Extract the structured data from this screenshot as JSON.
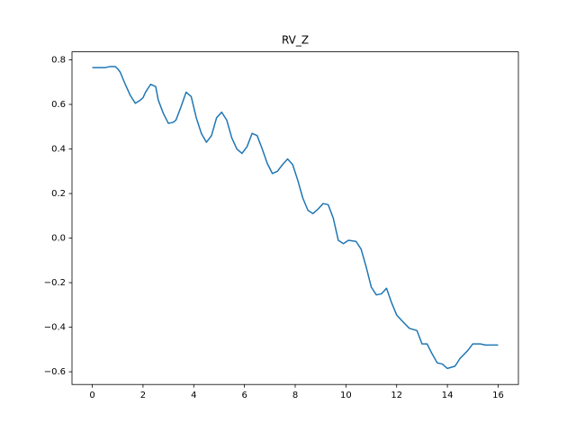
{
  "chart_data": {
    "type": "line",
    "title": "RV_Z",
    "x": [
      0,
      0.5,
      0.7,
      0.9,
      1.0,
      1.1,
      1.3,
      1.5,
      1.7,
      1.9,
      2.0,
      2.1,
      2.3,
      2.5,
      2.6,
      2.8,
      3.0,
      3.2,
      3.3,
      3.5,
      3.7,
      3.9,
      4.1,
      4.3,
      4.5,
      4.7,
      4.9,
      5.1,
      5.3,
      5.5,
      5.7,
      5.9,
      6.1,
      6.3,
      6.5,
      6.7,
      6.9,
      7.1,
      7.3,
      7.5,
      7.7,
      7.9,
      8.1,
      8.3,
      8.5,
      8.7,
      8.9,
      9.1,
      9.3,
      9.5,
      9.7,
      9.9,
      10.1,
      10.4,
      10.6,
      10.8,
      11.0,
      11.2,
      11.4,
      11.6,
      11.8,
      12.0,
      12.2,
      12.5,
      12.8,
      13.0,
      13.2,
      13.4,
      13.6,
      13.8,
      14.0,
      14.3,
      14.5,
      14.8,
      15.0,
      15.3,
      15.5,
      16.0
    ],
    "series": [
      {
        "name": "RV_Z",
        "color": "#1f77b4",
        "values": [
          0.765,
          0.765,
          0.77,
          0.77,
          0.76,
          0.745,
          0.69,
          0.64,
          0.605,
          0.62,
          0.63,
          0.655,
          0.69,
          0.68,
          0.62,
          0.56,
          0.515,
          0.52,
          0.53,
          0.59,
          0.655,
          0.635,
          0.54,
          0.47,
          0.43,
          0.46,
          0.54,
          0.565,
          0.53,
          0.45,
          0.4,
          0.38,
          0.41,
          0.47,
          0.46,
          0.4,
          0.335,
          0.29,
          0.3,
          0.33,
          0.355,
          0.33,
          0.26,
          0.18,
          0.125,
          0.11,
          0.13,
          0.155,
          0.15,
          0.09,
          -0.01,
          -0.025,
          -0.01,
          -0.015,
          -0.05,
          -0.13,
          -0.22,
          -0.255,
          -0.25,
          -0.225,
          -0.29,
          -0.345,
          -0.37,
          -0.405,
          -0.415,
          -0.475,
          -0.475,
          -0.52,
          -0.56,
          -0.565,
          -0.585,
          -0.575,
          -0.54,
          -0.505,
          -0.475,
          -0.475,
          -0.48,
          -0.48
        ]
      }
    ],
    "xlim": [
      -0.8,
      16.8
    ],
    "ylim": [
      -0.657,
      0.836
    ],
    "xticks": [
      0,
      2,
      4,
      6,
      8,
      10,
      12,
      14,
      16
    ],
    "yticks": [
      {
        "value": -0.6,
        "label": "−0.6"
      },
      {
        "value": -0.4,
        "label": "−0.4"
      },
      {
        "value": -0.2,
        "label": "−0.2"
      },
      {
        "value": 0,
        "label": "0.0"
      },
      0.2,
      0.4,
      0.6,
      0.8
    ]
  }
}
